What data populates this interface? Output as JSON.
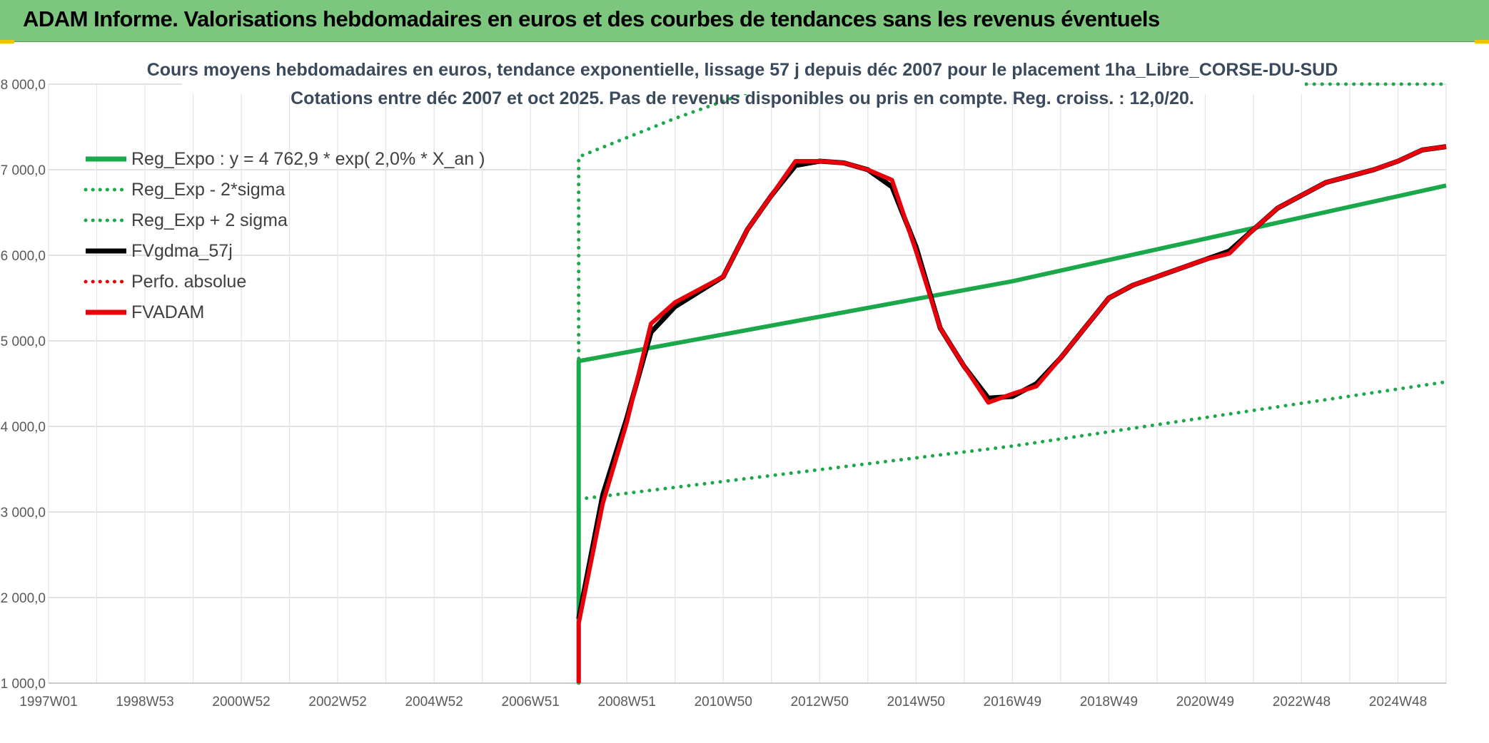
{
  "header": {
    "title": "ADAM Informe. Valorisations hebdomadaires en euros et des courbes de tendances sans les revenus éventuels"
  },
  "colors": {
    "header_bg": "#7dc67d",
    "green": "#1aa84a",
    "black": "#000000",
    "red": "#e8000b",
    "grid": "#d9d9d9"
  },
  "chart_data": {
    "type": "line",
    "title": "Cours moyens hebdomadaires en euros, tendance exponentielle, lissage 57 j depuis déc 2007 pour le placement 1ha_Libre_CORSE-DU-SUD",
    "subtitle": "Cotations entre déc 2007 et oct 2025. Pas de revenus disponibles ou pris en compte. Reg. croiss. : 12,0/20.",
    "xlabel": "",
    "ylabel": "",
    "ylim": [
      1000,
      8000
    ],
    "xlim": [
      1997.0,
      2026.0
    ],
    "grid": true,
    "legend_position": "top-left",
    "x_ticks": [
      {
        "x": 1997.0,
        "label": "1997W01"
      },
      {
        "x": 1999.0,
        "label": "1998W53"
      },
      {
        "x": 2001.0,
        "label": "2000W52"
      },
      {
        "x": 2003.0,
        "label": "2002W52"
      },
      {
        "x": 2005.0,
        "label": "2004W52"
      },
      {
        "x": 2007.0,
        "label": "2006W51"
      },
      {
        "x": 2009.0,
        "label": "2008W51"
      },
      {
        "x": 2011.0,
        "label": "2010W50"
      },
      {
        "x": 2013.0,
        "label": "2012W50"
      },
      {
        "x": 2015.0,
        "label": "2014W50"
      },
      {
        "x": 2017.0,
        "label": "2016W49"
      },
      {
        "x": 2019.0,
        "label": "2018W49"
      },
      {
        "x": 2021.0,
        "label": "2020W49"
      },
      {
        "x": 2023.0,
        "label": "2022W48"
      },
      {
        "x": 2025.0,
        "label": "2024W48"
      }
    ],
    "y_ticks": [
      {
        "y": 1000,
        "label": "1 000,0"
      },
      {
        "y": 2000,
        "label": "2 000,0"
      },
      {
        "y": 3000,
        "label": "3 000,0"
      },
      {
        "y": 4000,
        "label": "4 000,0"
      },
      {
        "y": 5000,
        "label": "5 000,0"
      },
      {
        "y": 6000,
        "label": "6 000,0"
      },
      {
        "y": 7000,
        "label": "7 000,0"
      },
      {
        "y": 8000,
        "label": "8 000,0"
      }
    ],
    "series": [
      {
        "name": "Reg_Expo : y = 4 762,9 * exp( 2,0% *  X_an )",
        "color": "#1aa84a",
        "style": "solid",
        "points": [
          [
            2008.0,
            1000
          ],
          [
            2008.0,
            4763
          ],
          [
            2017.0,
            5697
          ],
          [
            2026.0,
            6815
          ]
        ]
      },
      {
        "name": "Reg_Exp - 2*sigma",
        "color": "#1aa84a",
        "style": "dotted",
        "points": [
          [
            2008.0,
            3150
          ],
          [
            2017.0,
            3770
          ],
          [
            2026.0,
            4520
          ]
        ]
      },
      {
        "name": "Reg_Exp + 2 sigma",
        "color": "#1aa84a",
        "style": "dotted",
        "points": [
          [
            2008.0,
            1000
          ],
          [
            2008.0,
            7150
          ],
          [
            2010.0,
            7600
          ],
          [
            2012.0,
            8000
          ],
          [
            2026.0,
            8000
          ]
        ]
      },
      {
        "name": "FVgdma_57j",
        "color": "#000000",
        "style": "solid",
        "points": [
          [
            2008.0,
            1750
          ],
          [
            2008.5,
            3200
          ],
          [
            2009.0,
            4100
          ],
          [
            2009.5,
            5100
          ],
          [
            2010.0,
            5400
          ],
          [
            2011.0,
            5750
          ],
          [
            2011.5,
            6300
          ],
          [
            2012.0,
            6700
          ],
          [
            2012.5,
            7050
          ],
          [
            2013.0,
            7100
          ],
          [
            2013.5,
            7080
          ],
          [
            2014.0,
            7000
          ],
          [
            2014.5,
            6800
          ],
          [
            2015.0,
            6100
          ],
          [
            2015.5,
            5150
          ],
          [
            2016.0,
            4700
          ],
          [
            2016.5,
            4330
          ],
          [
            2017.0,
            4350
          ],
          [
            2017.5,
            4500
          ],
          [
            2018.0,
            4800
          ],
          [
            2018.5,
            5150
          ],
          [
            2019.0,
            5500
          ],
          [
            2019.5,
            5650
          ],
          [
            2020.0,
            5750
          ],
          [
            2021.0,
            5950
          ],
          [
            2021.5,
            6050
          ],
          [
            2022.0,
            6300
          ],
          [
            2022.5,
            6550
          ],
          [
            2023.0,
            6700
          ],
          [
            2023.5,
            6850
          ],
          [
            2024.5,
            7000
          ],
          [
            2025.0,
            7100
          ],
          [
            2025.5,
            7230
          ],
          [
            2026.0,
            7270
          ]
        ]
      },
      {
        "name": "Perfo. absolue",
        "color": "#e8000b",
        "style": "dotted",
        "points": []
      },
      {
        "name": "FVADAM",
        "color": "#e8000b",
        "style": "solid",
        "points": [
          [
            2008.0,
            1000
          ],
          [
            2008.0,
            1700
          ],
          [
            2008.5,
            3100
          ],
          [
            2009.0,
            4050
          ],
          [
            2009.5,
            5200
          ],
          [
            2010.0,
            5450
          ],
          [
            2011.0,
            5750
          ],
          [
            2011.5,
            6300
          ],
          [
            2012.0,
            6700
          ],
          [
            2012.5,
            7100
          ],
          [
            2013.0,
            7100
          ],
          [
            2013.5,
            7080
          ],
          [
            2014.0,
            7000
          ],
          [
            2014.5,
            6880
          ],
          [
            2015.0,
            6050
          ],
          [
            2015.5,
            5150
          ],
          [
            2016.0,
            4700
          ],
          [
            2016.5,
            4280
          ],
          [
            2017.0,
            4380
          ],
          [
            2017.5,
            4470
          ],
          [
            2018.0,
            4800
          ],
          [
            2018.5,
            5150
          ],
          [
            2019.0,
            5500
          ],
          [
            2019.5,
            5650
          ],
          [
            2020.0,
            5750
          ],
          [
            2021.0,
            5950
          ],
          [
            2021.5,
            6020
          ],
          [
            2022.0,
            6300
          ],
          [
            2022.5,
            6550
          ],
          [
            2023.0,
            6700
          ],
          [
            2023.5,
            6850
          ],
          [
            2024.5,
            7000
          ],
          [
            2025.0,
            7100
          ],
          [
            2025.5,
            7230
          ],
          [
            2026.0,
            7270
          ]
        ]
      }
    ]
  }
}
